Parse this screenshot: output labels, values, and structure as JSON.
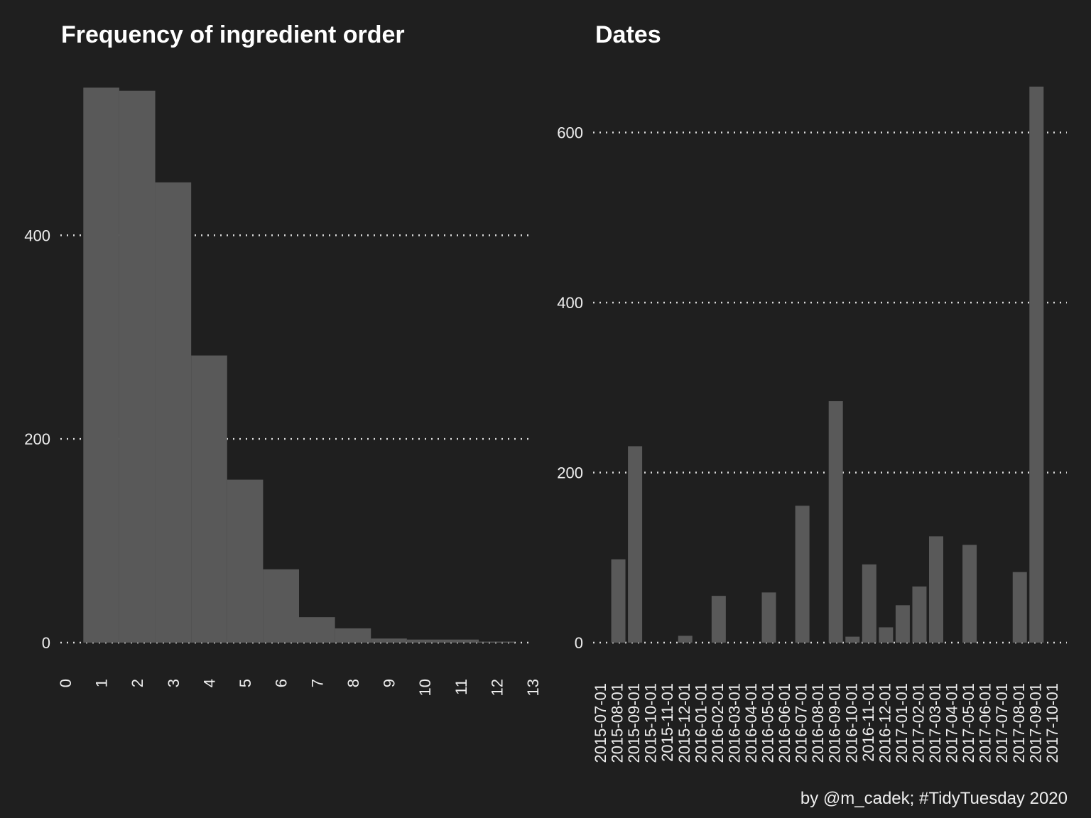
{
  "chart_data": [
    {
      "type": "histogram",
      "title": "Frequency of ingredient order",
      "bins": [
        0.5,
        1.5,
        2.5,
        3.5,
        4.5,
        5.5,
        6.5,
        7.5,
        8.5,
        9.5,
        10.5,
        11.5,
        12.5
      ],
      "values": [
        545,
        542,
        452,
        282,
        160,
        72,
        25,
        14,
        4,
        3,
        3,
        1
      ],
      "color": "#595959",
      "xlim": [
        0,
        13
      ],
      "xticks": [
        0,
        1,
        2,
        3,
        4,
        5,
        6,
        7,
        8,
        9,
        10,
        11,
        12,
        13
      ],
      "ylim": [
        0,
        546
      ],
      "yticks": [
        0,
        200,
        400
      ],
      "grid": true
    },
    {
      "type": "bar",
      "title": "Dates",
      "categories": [
        "2015-07-01",
        "2015-08-01",
        "2015-09-01",
        "2015-10-01",
        "2015-11-01",
        "2015-12-01",
        "2016-01-01",
        "2016-02-01",
        "2016-03-01",
        "2016-04-01",
        "2016-05-01",
        "2016-06-01",
        "2016-07-01",
        "2016-08-01",
        "2016-09-01",
        "2016-10-01",
        "2016-11-01",
        "2016-12-01",
        "2017-01-01",
        "2017-02-01",
        "2017-03-01",
        "2017-04-01",
        "2017-05-01",
        "2017-06-01",
        "2017-07-01",
        "2017-08-01",
        "2017-09-01",
        "2017-10-01"
      ],
      "values": [
        0,
        98,
        231,
        0,
        0,
        8,
        0,
        55,
        0,
        0,
        59,
        0,
        161,
        0,
        284,
        7,
        92,
        18,
        44,
        66,
        125,
        0,
        115,
        0,
        0,
        83,
        654,
        0
      ],
      "color": "#595959",
      "ylim": [
        0,
        654
      ],
      "yticks": [
        0,
        200,
        400,
        600
      ],
      "grid": true
    }
  ],
  "caption": "by @m_cadek; #TidyTuesday 2020"
}
